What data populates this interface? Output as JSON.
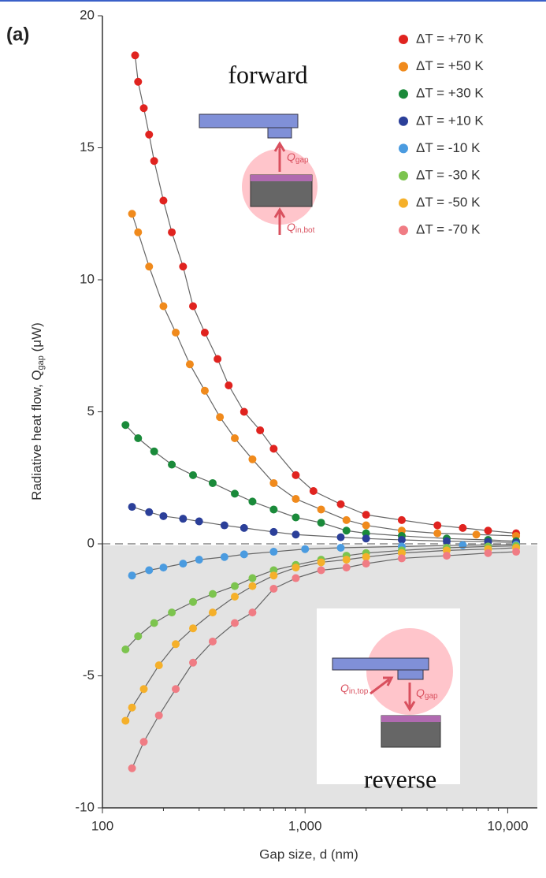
{
  "chart_data": {
    "type": "scatter",
    "panel_label": "(a)",
    "xlabel": "Gap size, d (nm)",
    "ylabel": [
      "Radiative heat flow, Q",
      "gap",
      " (μW)"
    ],
    "xlog": true,
    "xlim": [
      100,
      14000
    ],
    "ylim": [
      -10,
      20
    ],
    "xticks": [
      100,
      {
        "value": 1000,
        "label": "1,000"
      },
      {
        "value": 10000,
        "label": "10,000"
      }
    ],
    "yticks": [
      -10,
      -5,
      0,
      5,
      10,
      15,
      20
    ],
    "legend": "upper right",
    "annotations": [
      "forward",
      "reverse"
    ],
    "inset_labels": [
      {
        "main": "Q",
        "sub": "gap"
      },
      {
        "main": "Q",
        "sub": "in,bot"
      },
      {
        "main": "Q",
        "sub": "in,top"
      },
      {
        "main": "Q",
        "sub": "gap"
      }
    ],
    "series": [
      {
        "name": "ΔT = +70 K",
        "color": "#e0231f",
        "x": [
          145,
          150,
          160,
          170,
          180,
          200,
          220,
          250,
          280,
          320,
          370,
          420,
          500,
          600,
          700,
          900,
          1100,
          1500,
          2000,
          3000,
          4500,
          6000,
          8000,
          11000
        ],
        "values": [
          18.5,
          17.5,
          16.5,
          15.5,
          14.5,
          13,
          11.8,
          10.5,
          9,
          8,
          7,
          6,
          5,
          4.3,
          3.6,
          2.6,
          2,
          1.5,
          1.1,
          0.9,
          0.7,
          0.6,
          0.5,
          0.4
        ]
      },
      {
        "name": "ΔT = +50 K",
        "color": "#f08a1c",
        "x": [
          140,
          150,
          170,
          200,
          230,
          270,
          320,
          380,
          450,
          550,
          700,
          900,
          1200,
          1600,
          2000,
          3000,
          4500,
          7000,
          11000
        ],
        "values": [
          12.5,
          11.8,
          10.5,
          9,
          8,
          6.8,
          5.8,
          4.8,
          4,
          3.2,
          2.3,
          1.7,
          1.3,
          0.9,
          0.7,
          0.5,
          0.4,
          0.35,
          0.3
        ]
      },
      {
        "name": "ΔT = +30 K",
        "color": "#1a8a3a",
        "x": [
          130,
          150,
          180,
          220,
          280,
          350,
          450,
          550,
          700,
          900,
          1200,
          1600,
          2000,
          3000,
          5000,
          8000,
          11000
        ],
        "values": [
          4.5,
          4,
          3.5,
          3,
          2.6,
          2.3,
          1.9,
          1.6,
          1.3,
          1,
          0.8,
          0.5,
          0.4,
          0.3,
          0.2,
          0.15,
          0.1
        ]
      },
      {
        "name": "ΔT = +10 K",
        "color": "#2b3f99",
        "x": [
          140,
          170,
          200,
          250,
          300,
          400,
          500,
          700,
          900,
          1500,
          2000,
          3000,
          5000,
          8000,
          11000
        ],
        "values": [
          1.4,
          1.2,
          1.05,
          0.95,
          0.85,
          0.7,
          0.6,
          0.45,
          0.35,
          0.25,
          0.2,
          0.15,
          0.1,
          0.08,
          0.05
        ]
      },
      {
        "name": "ΔT = -10 K",
        "color": "#4a9be0",
        "x": [
          140,
          170,
          200,
          250,
          300,
          400,
          500,
          700,
          1000,
          1500,
          3000,
          6000,
          11000
        ],
        "values": [
          -1.2,
          -1,
          -0.9,
          -0.75,
          -0.6,
          -0.5,
          -0.4,
          -0.3,
          -0.2,
          -0.15,
          -0.1,
          -0.05,
          -0.03
        ]
      },
      {
        "name": "ΔT = -30 K",
        "color": "#7cc44e",
        "x": [
          130,
          150,
          180,
          220,
          280,
          350,
          450,
          550,
          700,
          900,
          1200,
          1600,
          2000,
          3000,
          5000,
          8000,
          11000
        ],
        "values": [
          -4,
          -3.5,
          -3,
          -2.6,
          -2.2,
          -1.9,
          -1.6,
          -1.3,
          -1,
          -0.8,
          -0.6,
          -0.45,
          -0.35,
          -0.25,
          -0.15,
          -0.1,
          -0.08
        ]
      },
      {
        "name": "ΔT = -50 K",
        "color": "#f5b02a",
        "x": [
          130,
          140,
          160,
          190,
          230,
          280,
          350,
          450,
          550,
          700,
          900,
          1200,
          1600,
          2000,
          3000,
          5000,
          8000,
          11000
        ],
        "values": [
          -6.7,
          -6.2,
          -5.5,
          -4.6,
          -3.8,
          -3.2,
          -2.6,
          -2,
          -1.6,
          -1.2,
          -0.9,
          -0.7,
          -0.6,
          -0.5,
          -0.35,
          -0.25,
          -0.2,
          -0.15
        ]
      },
      {
        "name": "ΔT = -70 K",
        "color": "#f07c84",
        "x": [
          140,
          160,
          190,
          230,
          280,
          350,
          450,
          550,
          700,
          900,
          1200,
          1600,
          2000,
          3000,
          5000,
          8000,
          11000
        ],
        "values": [
          -8.5,
          -7.5,
          -6.5,
          -5.5,
          -4.5,
          -3.7,
          -3,
          -2.6,
          -1.7,
          -1.3,
          -1,
          -0.9,
          -0.75,
          -0.55,
          -0.45,
          -0.35,
          -0.3
        ]
      }
    ]
  }
}
